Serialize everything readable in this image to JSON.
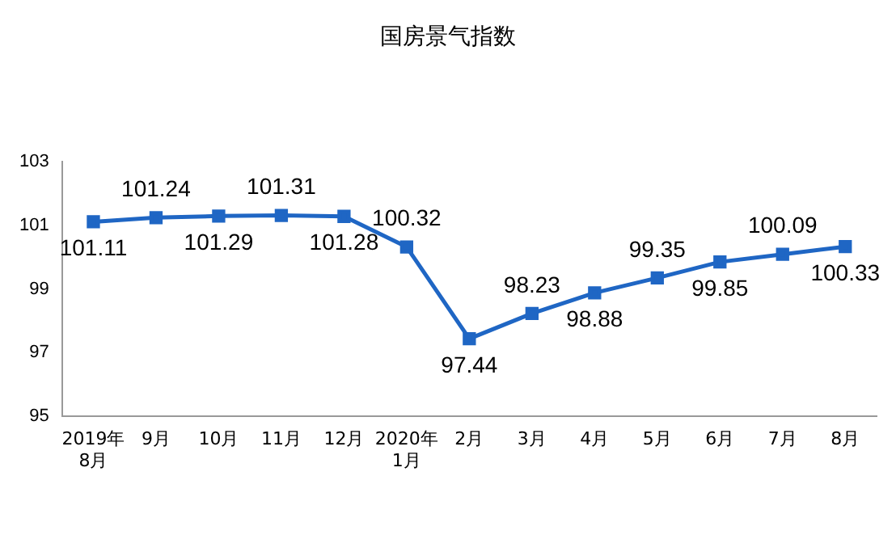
{
  "chart_data": {
    "type": "line",
    "title": "国房景气指数",
    "categories": [
      "2019年\n8月",
      "9月",
      "10月",
      "11月",
      "12月",
      "2020年\n1月",
      "2月",
      "3月",
      "4月",
      "5月",
      "6月",
      "7月",
      "8月"
    ],
    "series": [
      {
        "color": "#1f66c4",
        "values": [
          101.11,
          101.24,
          101.29,
          101.31,
          101.28,
          100.32,
          97.44,
          98.23,
          98.88,
          99.35,
          99.85,
          100.09,
          100.33
        ]
      }
    ],
    "ylim": [
      95,
      103
    ],
    "yticks": [
      95,
      97,
      99,
      101,
      103
    ],
    "grid": false,
    "legend": false,
    "marker": "square",
    "line_style": "solid",
    "data_labels": true
  }
}
